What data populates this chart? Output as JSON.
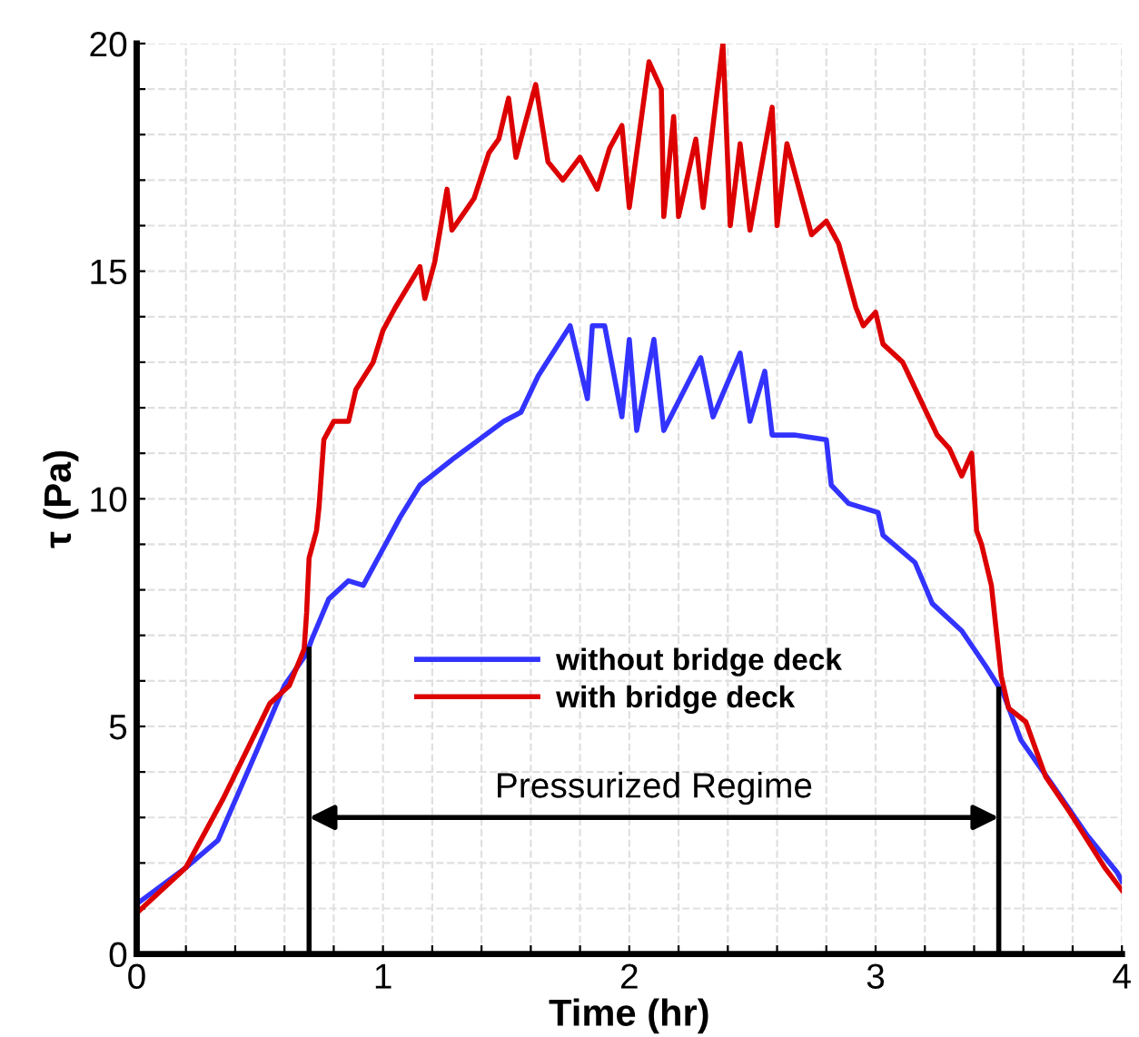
{
  "chart_data": {
    "type": "line",
    "xlabel": "Time (hr)",
    "ylabel": "τ (Pa)",
    "xlim": [
      0,
      4
    ],
    "ylim": [
      0,
      20
    ],
    "xticks": [
      0,
      {
        "value": 0.2,
        "label": null
      },
      {
        "value": 0.4,
        "label": null
      },
      {
        "value": 0.6,
        "label": null
      },
      {
        "value": 0.8,
        "label": null
      },
      1,
      {
        "value": 1.2,
        "label": null
      },
      {
        "value": 1.4,
        "label": null
      },
      {
        "value": 1.6,
        "label": null
      },
      {
        "value": 1.8,
        "label": null
      },
      2,
      {
        "value": 2.2,
        "label": null
      },
      {
        "value": 2.4,
        "label": null
      },
      {
        "value": 2.6,
        "label": null
      },
      {
        "value": 2.8,
        "label": null
      },
      3,
      {
        "value": 3.2,
        "label": null
      },
      {
        "value": 3.4,
        "label": null
      },
      {
        "value": 3.6,
        "label": null
      },
      {
        "value": 3.8,
        "label": null
      },
      4
    ],
    "yticks": [
      0,
      {
        "value": 1,
        "label": null
      },
      {
        "value": 2,
        "label": null
      },
      {
        "value": 3,
        "label": null
      },
      {
        "value": 4,
        "label": null
      },
      5,
      {
        "value": 6,
        "label": null
      },
      {
        "value": 7,
        "label": null
      },
      {
        "value": 8,
        "label": null
      },
      {
        "value": 9,
        "label": null
      },
      10,
      {
        "value": 11,
        "label": null
      },
      {
        "value": 12,
        "label": null
      },
      {
        "value": 13,
        "label": null
      },
      {
        "value": 14,
        "label": null
      },
      15,
      {
        "value": 16,
        "label": null
      },
      {
        "value": 17,
        "label": null
      },
      {
        "value": 18,
        "label": null
      },
      {
        "value": 19,
        "label": null
      },
      20
    ],
    "grid": true,
    "legend": "center",
    "line_style": "solid",
    "series": [
      {
        "name": "without bridge deck",
        "color": "#3333ff",
        "x": [
          0,
          0.2,
          0.33,
          0.49,
          0.6,
          0.69,
          0.71,
          0.78,
          0.86,
          0.92,
          1.0,
          1.07,
          1.15,
          1.29,
          1.39,
          1.49,
          1.56,
          1.63,
          1.76,
          1.83,
          1.85,
          1.9,
          1.97,
          2.0,
          2.03,
          2.1,
          2.14,
          2.29,
          2.34,
          2.45,
          2.49,
          2.55,
          2.58,
          2.67,
          2.8,
          2.82,
          2.89,
          3.01,
          3.03,
          3.16,
          3.23,
          3.35,
          3.45,
          3.52,
          3.59,
          3.72,
          3.86,
          3.98,
          4.0
        ],
        "values": [
          1.1,
          1.9,
          2.5,
          4.5,
          5.9,
          6.6,
          6.9,
          7.8,
          8.2,
          8.1,
          8.9,
          9.6,
          10.3,
          10.9,
          11.3,
          11.7,
          11.9,
          12.7,
          13.8,
          12.2,
          13.8,
          13.8,
          11.8,
          13.5,
          11.5,
          13.5,
          11.5,
          13.1,
          11.8,
          13.2,
          11.7,
          12.8,
          11.4,
          11.4,
          11.3,
          10.3,
          9.9,
          9.7,
          9.2,
          8.6,
          7.7,
          7.1,
          6.3,
          5.7,
          4.7,
          3.7,
          2.6,
          1.8,
          1.6
        ]
      },
      {
        "name": "with bridge deck",
        "color": "#dd0000",
        "x": [
          0,
          0.2,
          0.35,
          0.54,
          0.62,
          0.68,
          0.69,
          0.7,
          0.73,
          0.74,
          0.76,
          0.8,
          0.86,
          0.89,
          0.96,
          1.0,
          1.05,
          1.15,
          1.17,
          1.21,
          1.26,
          1.28,
          1.37,
          1.43,
          1.47,
          1.51,
          1.54,
          1.62,
          1.67,
          1.73,
          1.8,
          1.87,
          1.92,
          1.97,
          2.0,
          2.08,
          2.13,
          2.14,
          2.18,
          2.2,
          2.27,
          2.3,
          2.38,
          2.41,
          2.45,
          2.49,
          2.58,
          2.6,
          2.64,
          2.74,
          2.8,
          2.85,
          2.92,
          2.95,
          3.0,
          3.03,
          3.11,
          3.18,
          3.25,
          3.3,
          3.35,
          3.39,
          3.41,
          3.43,
          3.47,
          3.51,
          3.54,
          3.61,
          3.69,
          3.79,
          3.93,
          4.0
        ],
        "values": [
          0.9,
          1.9,
          3.4,
          5.5,
          5.9,
          6.7,
          7.5,
          8.7,
          9.3,
          9.8,
          11.3,
          11.7,
          11.7,
          12.4,
          13.0,
          13.7,
          14.2,
          15.1,
          14.4,
          15.2,
          16.8,
          15.9,
          16.6,
          17.6,
          17.9,
          18.8,
          17.5,
          19.1,
          17.4,
          17.0,
          17.5,
          16.8,
          17.7,
          18.2,
          16.4,
          19.6,
          19.0,
          16.2,
          18.4,
          16.2,
          17.9,
          16.4,
          20.0,
          16.0,
          17.8,
          15.9,
          18.6,
          16.0,
          17.8,
          15.8,
          16.1,
          15.6,
          14.2,
          13.8,
          14.1,
          13.4,
          13.0,
          12.2,
          11.4,
          11.1,
          10.5,
          11.0,
          9.3,
          9.0,
          8.1,
          6.1,
          5.4,
          5.1,
          3.9,
          3.1,
          1.9,
          1.4
        ]
      }
    ],
    "ref_lines": [
      {
        "axis": "x",
        "value": 0.7,
        "color": "#000000"
      },
      {
        "axis": "x",
        "value": 3.5,
        "color": "#000000"
      }
    ],
    "annotations": [
      "Pressurized Regime"
    ]
  }
}
